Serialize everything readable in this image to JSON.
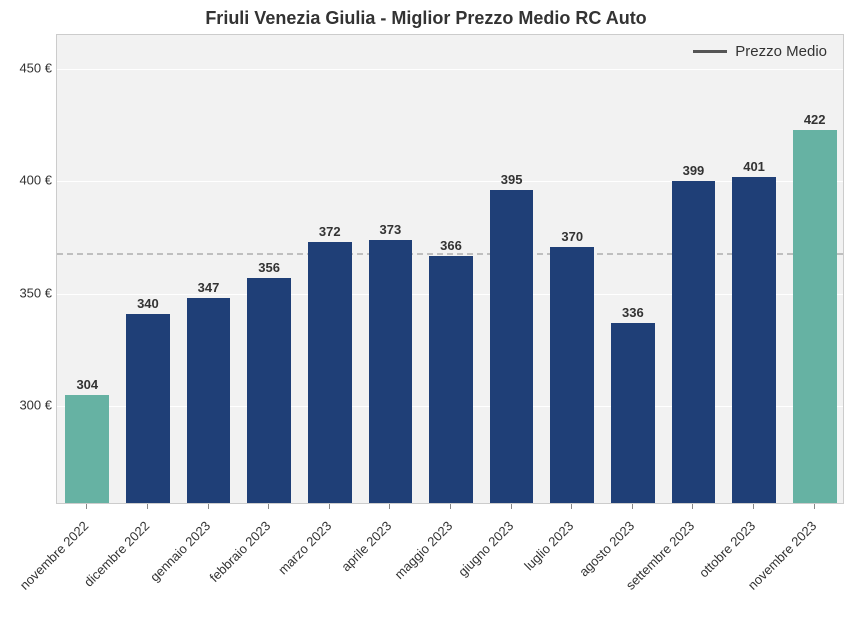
{
  "chart": {
    "type": "bar",
    "title": "Friuli Venezia Giulia - Miglior Prezzo Medio RC Auto",
    "title_fontsize": 18,
    "title_color": "#333333",
    "background_color": "#ffffff",
    "plot_background": "#f2f2f2",
    "grid_color": "#ffffff",
    "border_color": "#cccccc",
    "mean_line_color": "#bfbfbf",
    "mean_value": 368,
    "ylim_min": 256,
    "ylim_max": 465,
    "yticks": [
      300,
      350,
      400,
      450
    ],
    "ytick_suffix": " €",
    "tick_fontsize": 13,
    "label_fontsize": 13,
    "label_weight": "bold",
    "bar_width_ratio": 0.72,
    "categories": [
      "novembre 2022",
      "dicembre 2022",
      "gennaio 2023",
      "febbraio 2023",
      "marzo 2023",
      "aprile 2023",
      "maggio 2023",
      "giugno 2023",
      "luglio 2023",
      "agosto 2023",
      "settembre 2023",
      "ottobre 2023",
      "novembre 2023"
    ],
    "values": [
      304,
      340,
      347,
      356,
      372,
      373,
      366,
      395,
      370,
      336,
      399,
      401,
      422
    ],
    "bar_colors": [
      "#66b2a3",
      "#1f3f77",
      "#1f3f77",
      "#1f3f77",
      "#1f3f77",
      "#1f3f77",
      "#1f3f77",
      "#1f3f77",
      "#1f3f77",
      "#1f3f77",
      "#1f3f77",
      "#1f3f77",
      "#66b2a3"
    ],
    "legend": {
      "label": "Prezzo Medio",
      "line_color": "#555555"
    }
  }
}
